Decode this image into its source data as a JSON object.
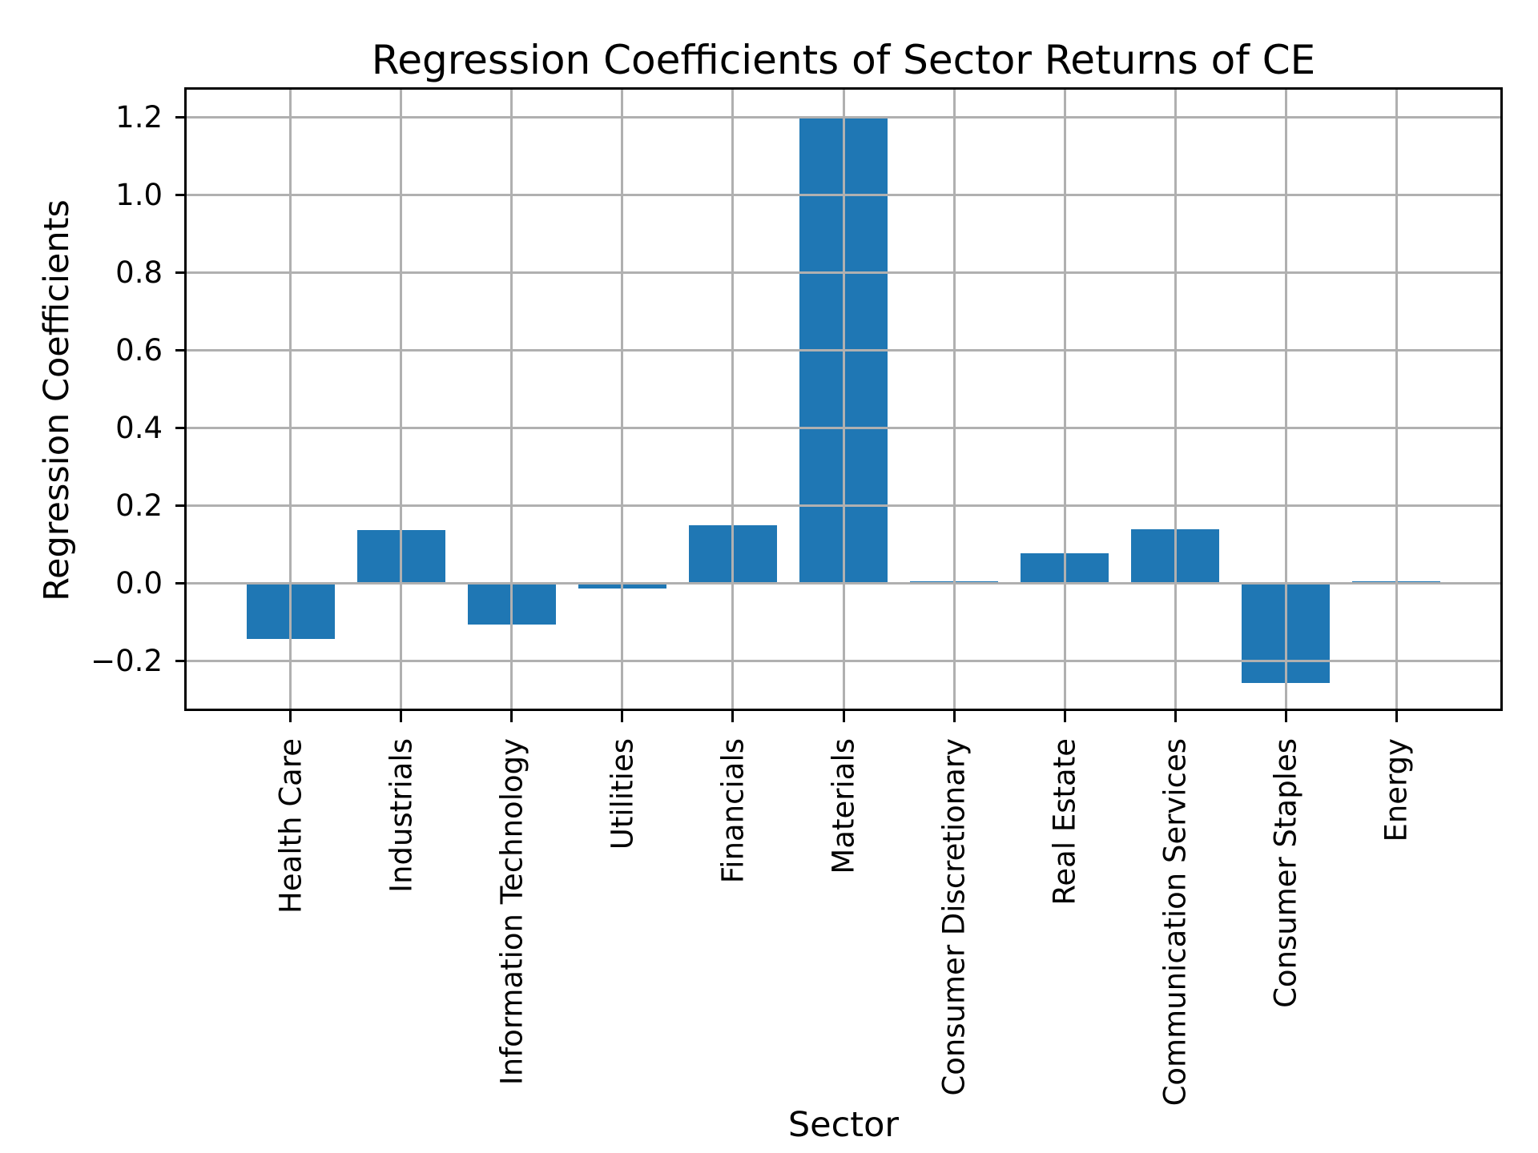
{
  "chart_data": {
    "type": "bar",
    "title": "Regression Coefficients of Sector Returns of CE",
    "xlabel": "Sector",
    "ylabel": "Regression Coefficients",
    "categories": [
      "Health Care",
      "Industrials",
      "Information Technology",
      "Utilities",
      "Financials",
      "Materials",
      "Consumer Discretionary",
      "Real Estate",
      "Communication Services",
      "Consumer Staples",
      "Energy"
    ],
    "values": [
      -0.143,
      0.138,
      -0.106,
      -0.012,
      0.15,
      1.2,
      0.006,
      0.079,
      0.14,
      -0.257,
      0.006
    ],
    "bar_color": "#1f77b4",
    "bar_width": 0.8,
    "grid": true,
    "grid_color": "#b0b0b0",
    "axis_color": "#000000",
    "background": "#ffffff",
    "xlim": [
      -0.94,
      10.94
    ],
    "ylim": [
      -0.322,
      1.272
    ],
    "yticks": [
      {
        "value": 1.2,
        "label": "1.2"
      },
      {
        "value": 1.0,
        "label": "1.0"
      },
      {
        "value": 0.8,
        "label": "0.8"
      },
      {
        "value": 0.6,
        "label": "0.6"
      },
      {
        "value": 0.4,
        "label": "0.4"
      },
      {
        "value": 0.2,
        "label": "0.2"
      },
      {
        "value": 0.0,
        "label": "0.0"
      },
      {
        "value": -0.2,
        "label": "−0.2"
      }
    ],
    "x_tick_rotation": 90,
    "legend": null
  }
}
